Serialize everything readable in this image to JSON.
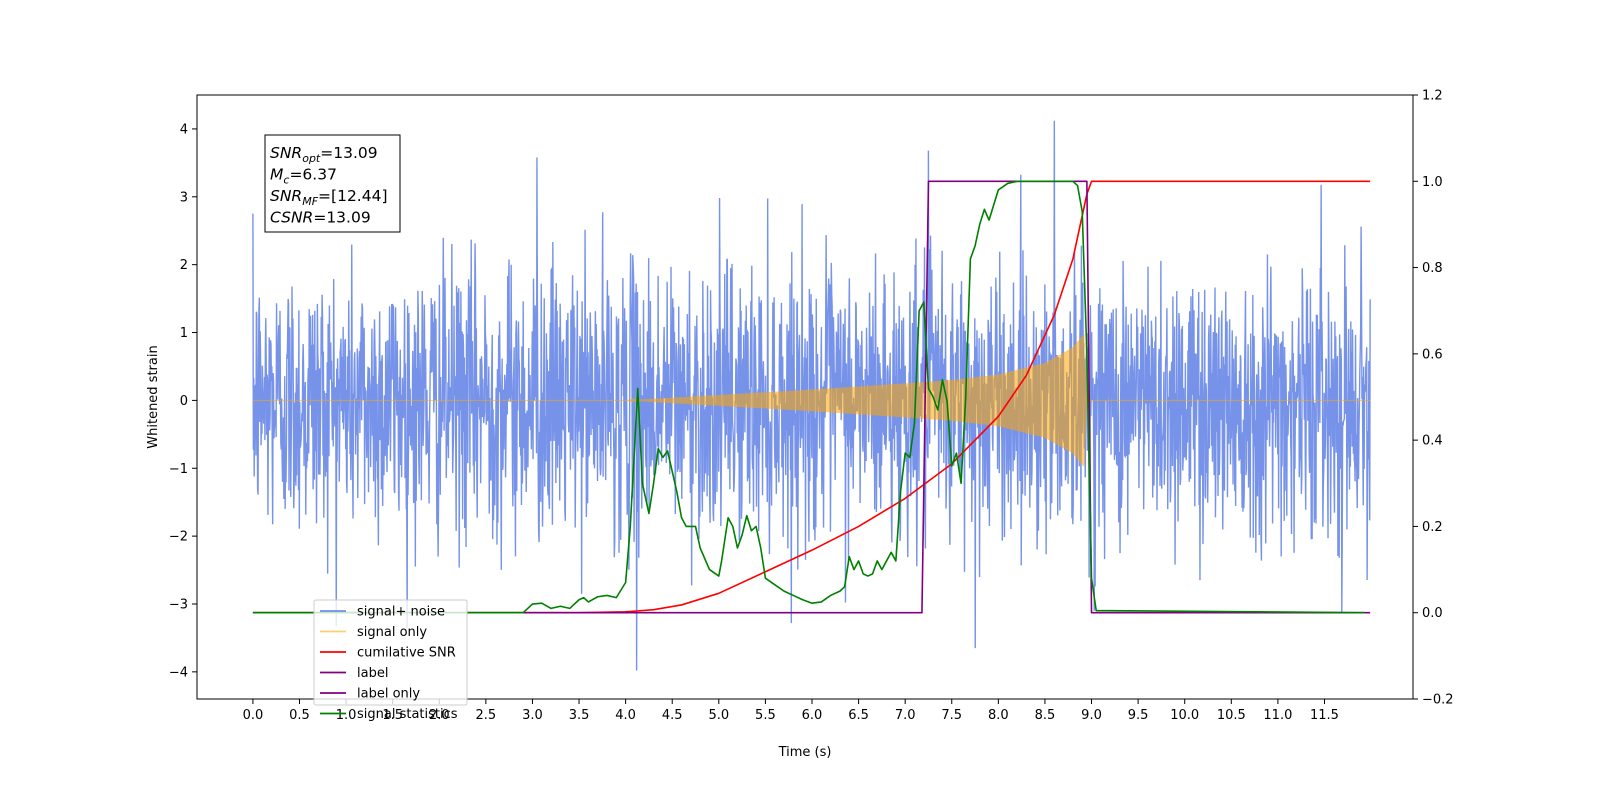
{
  "chart_data": {
    "type": "line",
    "xlabel": "Time (s)",
    "ylabel": "Whitened strain",
    "y2label": "",
    "xlim": [
      -0.6,
      12.45
    ],
    "ylim": [
      -4.4,
      4.5
    ],
    "y2lim": [
      -0.2,
      1.2
    ],
    "xticks": [
      0.0,
      0.5,
      1.0,
      1.5,
      2.0,
      2.5,
      3.0,
      3.5,
      4.0,
      4.5,
      5.0,
      5.5,
      6.0,
      6.5,
      7.0,
      7.5,
      8.0,
      8.5,
      9.0,
      9.5,
      10.0,
      10.5,
      11.0,
      11.5
    ],
    "xtick_labels": [
      "0.0",
      "0.5",
      "1.0",
      "1.5",
      "2.0",
      "2.5",
      "3.0",
      "3.5",
      "4.0",
      "4.5",
      "5.0",
      "5.5",
      "6.0",
      "6.5",
      "7.0",
      "7.5",
      "8.0",
      "8.5",
      "9.0",
      "9.5",
      "10.0",
      "10.5",
      "11.0",
      "11.5"
    ],
    "yticks": [
      -4,
      -3,
      -2,
      -1,
      0,
      1,
      2,
      3,
      4
    ],
    "ytick_labels": [
      "−4",
      "−3",
      "−2",
      "−1",
      "0",
      "1",
      "2",
      "3",
      "4"
    ],
    "y2ticks": [
      -0.2,
      0.0,
      0.2,
      0.4,
      0.6,
      0.8,
      1.0,
      1.2
    ],
    "y2tick_labels": [
      "−0.2",
      "0.0",
      "0.2",
      "0.4",
      "0.6",
      "0.8",
      "1.0",
      "1.2"
    ],
    "grid": false,
    "legend_position": "lower-left",
    "annotation": {
      "lines": [
        {
          "main": "SNR",
          "sub": "opt",
          "rest": "=13.09"
        },
        {
          "main": "M",
          "sub": "c",
          "rest": "=6.37"
        },
        {
          "main": "SNR",
          "sub": "MF",
          "rest": "=[12.44]"
        },
        {
          "main": "CSNR",
          "sub": "",
          "rest": "=13.09"
        }
      ]
    },
    "series": [
      {
        "name": "signal+ noise",
        "color": "#4169e1",
        "axis": "left",
        "t_range": [
          0.0,
          11.99
        ],
        "description_level": {
          "typical_band": [
            -1.6,
            1.6
          ],
          "max": 4.12,
          "min": -3.98
        }
      },
      {
        "name": "signal only",
        "color": "#ffa500",
        "axis": "left",
        "t_range": [
          0.0,
          11.99
        ],
        "envelope": {
          "t": [
            0.0,
            4.0,
            5.0,
            6.0,
            7.0,
            7.5,
            8.0,
            8.5,
            8.8,
            8.92,
            8.95,
            11.99
          ],
          "amp": [
            0.0,
            0.0,
            0.08,
            0.16,
            0.25,
            0.3,
            0.38,
            0.55,
            0.78,
            0.98,
            0.0,
            0.0
          ]
        }
      },
      {
        "name": "cumilative SNR",
        "color": "#ff0000",
        "axis": "right",
        "x": [
          0.0,
          2.0,
          3.5,
          4.0,
          4.3,
          4.6,
          5.0,
          5.5,
          6.0,
          6.5,
          7.0,
          7.5,
          8.0,
          8.3,
          8.6,
          8.8,
          8.95,
          9.0,
          11.99
        ],
        "y": [
          0.0,
          0.0,
          0.0,
          0.002,
          0.007,
          0.018,
          0.045,
          0.095,
          0.145,
          0.2,
          0.265,
          0.345,
          0.455,
          0.55,
          0.69,
          0.82,
          0.97,
          1.0,
          1.0
        ]
      },
      {
        "name": "label",
        "color": "#800080",
        "axis": "right",
        "x": [
          0.0,
          7.18,
          7.25,
          8.95,
          9.0,
          11.99
        ],
        "y": [
          0.0,
          0.0,
          1.0,
          1.0,
          0.0,
          0.0
        ]
      },
      {
        "name": "label only",
        "color": "#800080",
        "axis": "right",
        "hidden": true,
        "x": [],
        "y": []
      },
      {
        "name": "signal statistics",
        "color": "#008000",
        "axis": "right",
        "x": [
          0.0,
          2.9,
          3.0,
          3.1,
          3.2,
          3.3,
          3.4,
          3.5,
          3.55,
          3.6,
          3.7,
          3.8,
          3.9,
          4.0,
          4.05,
          4.1,
          4.13,
          4.18,
          4.25,
          4.3,
          4.35,
          4.4,
          4.45,
          4.55,
          4.6,
          4.65,
          4.7,
          4.75,
          4.8,
          4.9,
          5.0,
          5.03,
          5.1,
          5.15,
          5.2,
          5.25,
          5.3,
          5.35,
          5.4,
          5.45,
          5.5,
          5.6,
          5.7,
          5.8,
          5.9,
          6.0,
          6.1,
          6.2,
          6.3,
          6.35,
          6.4,
          6.45,
          6.5,
          6.55,
          6.6,
          6.65,
          6.7,
          6.75,
          6.8,
          6.85,
          6.9,
          6.95,
          7.0,
          7.05,
          7.1,
          7.15,
          7.2,
          7.25,
          7.3,
          7.35,
          7.4,
          7.45,
          7.5,
          7.55,
          7.6,
          7.65,
          7.7,
          7.75,
          7.8,
          7.85,
          7.9,
          8.0,
          8.1,
          8.2,
          8.3,
          8.5,
          8.7,
          8.8,
          8.85,
          8.9,
          8.95,
          9.0,
          9.05,
          11.93
        ],
        "y": [
          0.0,
          0.0,
          0.02,
          0.022,
          0.01,
          0.015,
          0.01,
          0.03,
          0.035,
          0.025,
          0.037,
          0.04,
          0.035,
          0.07,
          0.2,
          0.4,
          0.52,
          0.3,
          0.23,
          0.3,
          0.38,
          0.36,
          0.375,
          0.28,
          0.22,
          0.2,
          0.2,
          0.2,
          0.15,
          0.1,
          0.085,
          0.12,
          0.22,
          0.2,
          0.15,
          0.18,
          0.225,
          0.19,
          0.2,
          0.15,
          0.08,
          0.065,
          0.05,
          0.04,
          0.03,
          0.022,
          0.025,
          0.04,
          0.05,
          0.06,
          0.13,
          0.1,
          0.12,
          0.09,
          0.085,
          0.09,
          0.12,
          0.1,
          0.12,
          0.14,
          0.12,
          0.28,
          0.37,
          0.36,
          0.44,
          0.7,
          0.72,
          0.52,
          0.5,
          0.47,
          0.54,
          0.49,
          0.34,
          0.37,
          0.3,
          0.5,
          0.82,
          0.85,
          0.9,
          0.935,
          0.91,
          0.98,
          0.995,
          1.0,
          1.0,
          1.0,
          1.0,
          1.0,
          0.99,
          0.93,
          0.6,
          0.08,
          0.005,
          0.0
        ]
      }
    ]
  }
}
